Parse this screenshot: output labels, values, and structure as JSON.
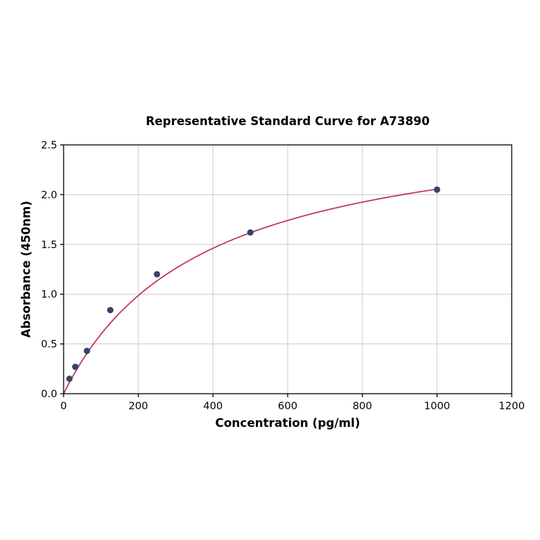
{
  "chart_data": {
    "type": "scatter",
    "title": "Representative Standard Curve for A73890",
    "xlabel": "Concentration (pg/ml)",
    "ylabel": "Absorbance (450nm)",
    "xlim": [
      0,
      1200
    ],
    "ylim": [
      0,
      2.5
    ],
    "grid": true,
    "legend": "none",
    "xticks": [
      {
        "v": 0,
        "label": "0"
      },
      {
        "v": 200,
        "label": "200"
      },
      {
        "v": 400,
        "label": "400"
      },
      {
        "v": 600,
        "label": "600"
      },
      {
        "v": 800,
        "label": "800"
      },
      {
        "v": 1000,
        "label": "1000"
      },
      {
        "v": 1200,
        "label": "1200"
      }
    ],
    "yticks": [
      {
        "v": 0.0,
        "label": "0.0"
      },
      {
        "v": 0.5,
        "label": "0.5"
      },
      {
        "v": 1.0,
        "label": "1.0"
      },
      {
        "v": 1.5,
        "label": "1.5"
      },
      {
        "v": 2.0,
        "label": "2.0"
      },
      {
        "v": 2.5,
        "label": "2.5"
      }
    ],
    "points": [
      {
        "x": 15.6,
        "y": 0.15
      },
      {
        "x": 31.25,
        "y": 0.27
      },
      {
        "x": 62.5,
        "y": 0.43
      },
      {
        "x": 125,
        "y": 0.84
      },
      {
        "x": 250,
        "y": 1.2
      },
      {
        "x": 500,
        "y": 1.62
      },
      {
        "x": 1000,
        "y": 2.05
      }
    ],
    "fit_curve": {
      "model": "saturation",
      "vmax": 2.82,
      "k": 372,
      "x_start": 0,
      "x_end": 1000
    },
    "colors": {
      "point": "#36436b",
      "curve": "#c2395f",
      "grid": "#cccccc",
      "spine": "#000000",
      "tick_text": "#000000"
    }
  }
}
